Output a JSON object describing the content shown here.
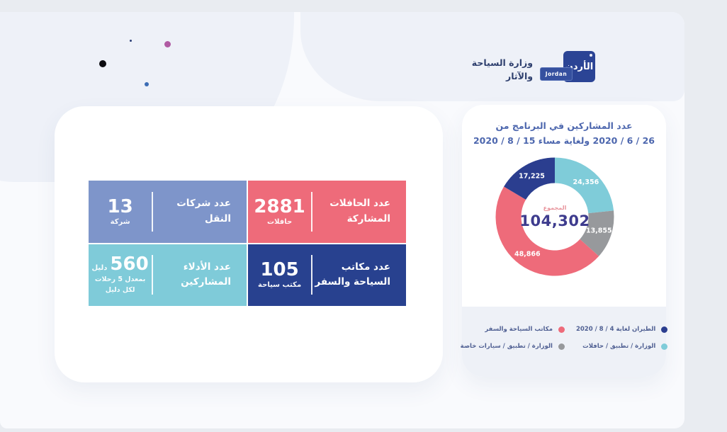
{
  "brand": {
    "ministry_name_line1": "وزارة السياحة",
    "ministry_name_line2": "والآثار",
    "logo_arabic": "الأردن",
    "logo_latin": "Jordan"
  },
  "stat_cards": [
    {
      "label_line1": "عدد شركات",
      "label_line2": "النقل",
      "value": "13",
      "unit": "شركة",
      "color": "#7e95ca"
    },
    {
      "label_line1": "عدد الحافلات",
      "label_line2": "المشاركة",
      "value": "2881",
      "unit": "حافلات",
      "color": "#ee6b7a"
    },
    {
      "label_line1": "عدد الأدلاء",
      "label_line2": "المشاركين",
      "value": "560",
      "unit": "دليل",
      "note_line1": "بمعدل 5 رحلات",
      "note_line2": "لكل دليل",
      "color": "#7fcbd9"
    },
    {
      "label_line1": "عدد مكاتب",
      "label_line2": "السياحة والسفر",
      "value": "105",
      "unit": "مكتب سياحة",
      "color": "#28418f"
    }
  ],
  "chart_data": {
    "type": "pie",
    "variant": "donut",
    "title_line1": "عدد المشاركين في البرنامج من",
    "title_line2": "26 / 6 / 2020 ولغاية مساء 15 / 8 / 2020",
    "center_label": "المجموع",
    "total_display": "104,302",
    "total_value": 104302,
    "start_angle_deg": 0,
    "direction": "clockwise",
    "slices": [
      {
        "label": "الوزارة / تطبيق / حافلات",
        "value": 24356,
        "display": "24,356",
        "color": "#7fccd9"
      },
      {
        "label": "الوزارة / تطبيق / سيارات خاصة",
        "value": 13855,
        "display": "13,855",
        "color": "#97999c"
      },
      {
        "label": "مكاتب السياحة والسفر",
        "value": 48866,
        "display": "48,866",
        "color": "#ee6b7a"
      },
      {
        "label": "الطيران لغاية 4 / 8 / 2020",
        "value": 17225,
        "display": "17,225",
        "color": "#2b3e8f"
      }
    ],
    "legend_columns": [
      [
        {
          "label": "الطيران لغاية 4 / 8 / 2020",
          "color": "#2b3e8f"
        },
        {
          "label": "الوزارة / تطبيق / حافلات",
          "color": "#7fccd9"
        }
      ],
      [
        {
          "label": "مكاتب السياحة والسفر",
          "color": "#ee6b7a"
        },
        {
          "label": "الوزارة / تطبيق / سيارات خاصة",
          "color": "#97999c"
        }
      ]
    ]
  }
}
